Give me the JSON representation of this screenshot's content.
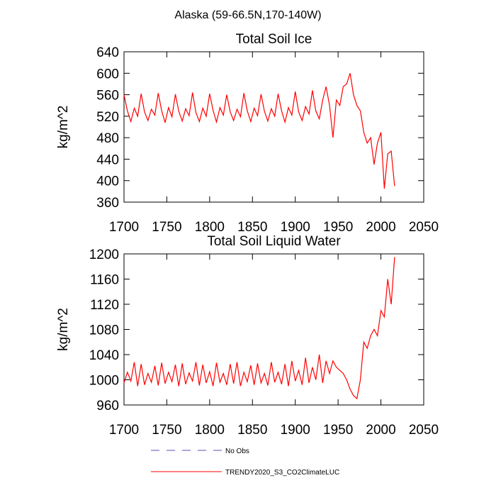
{
  "title": "Alaska (59-66.5N,170-140W)",
  "legend": [
    {
      "name": "No Obs",
      "color": "#5555bb",
      "dashed": true
    },
    {
      "name": "TRENDY2020_S3_CO2ClimateLUC",
      "color": "#ff0000",
      "dashed": false
    }
  ],
  "chart_data": [
    {
      "type": "line",
      "title": "Total Soil Ice",
      "ylabel": "kg/m^2",
      "xlim": [
        1700,
        2050
      ],
      "xticks": [
        1700,
        1750,
        1800,
        1850,
        1900,
        1950,
        2000,
        2050
      ],
      "ylim": [
        360,
        640
      ],
      "yticks": [
        360,
        400,
        440,
        480,
        520,
        560,
        600,
        640
      ],
      "x": [
        1700,
        1704,
        1708,
        1712,
        1716,
        1720,
        1724,
        1728,
        1732,
        1736,
        1740,
        1744,
        1748,
        1752,
        1756,
        1760,
        1764,
        1768,
        1772,
        1776,
        1780,
        1784,
        1788,
        1792,
        1796,
        1800,
        1804,
        1808,
        1812,
        1816,
        1820,
        1824,
        1828,
        1832,
        1836,
        1840,
        1844,
        1848,
        1852,
        1856,
        1860,
        1864,
        1868,
        1872,
        1876,
        1880,
        1884,
        1888,
        1892,
        1896,
        1900,
        1904,
        1908,
        1912,
        1916,
        1920,
        1924,
        1928,
        1932,
        1936,
        1940,
        1944,
        1948,
        1952,
        1956,
        1960,
        1964,
        1968,
        1972,
        1976,
        1980,
        1984,
        1988,
        1992,
        1996,
        2000,
        2004,
        2008,
        2012,
        2016
      ],
      "series": [
        {
          "color": "#ff0000",
          "values": [
            560,
            530,
            510,
            535,
            520,
            562,
            528,
            512,
            533,
            522,
            563,
            530,
            508,
            536,
            519,
            561,
            529,
            511,
            534,
            521,
            564,
            527,
            510,
            535,
            520,
            562,
            531,
            509,
            536,
            522,
            560,
            528,
            512,
            533,
            519,
            563,
            530,
            510,
            535,
            521,
            561,
            529,
            511,
            534,
            520,
            562,
            530,
            509,
            536,
            522,
            566,
            528,
            512,
            538,
            524,
            568,
            530,
            515,
            550,
            575,
            540,
            480,
            550,
            540,
            575,
            580,
            600,
            560,
            540,
            530,
            490,
            470,
            480,
            430,
            470,
            490,
            385,
            450,
            455,
            390
          ]
        }
      ]
    },
    {
      "type": "line",
      "title": "Total Soil Liquid Water",
      "ylabel": "kg/m^2",
      "xlim": [
        1700,
        2050
      ],
      "xticks": [
        1700,
        1750,
        1800,
        1850,
        1900,
        1950,
        2000,
        2050
      ],
      "ylim": [
        960,
        1200
      ],
      "yticks": [
        960,
        1000,
        1040,
        1080,
        1120,
        1160,
        1200
      ],
      "x": [
        1700,
        1704,
        1708,
        1712,
        1716,
        1720,
        1724,
        1728,
        1732,
        1736,
        1740,
        1744,
        1748,
        1752,
        1756,
        1760,
        1764,
        1768,
        1772,
        1776,
        1780,
        1784,
        1788,
        1792,
        1796,
        1800,
        1804,
        1808,
        1812,
        1816,
        1820,
        1824,
        1828,
        1832,
        1836,
        1840,
        1844,
        1848,
        1852,
        1856,
        1860,
        1864,
        1868,
        1872,
        1876,
        1880,
        1884,
        1888,
        1892,
        1896,
        1900,
        1904,
        1908,
        1912,
        1916,
        1920,
        1924,
        1928,
        1932,
        1936,
        1940,
        1944,
        1948,
        1952,
        1956,
        1960,
        1964,
        1968,
        1972,
        1976,
        1980,
        1984,
        1988,
        1992,
        1996,
        2000,
        2004,
        2008,
        2012,
        2016
      ],
      "series": [
        {
          "color": "#ff0000",
          "values": [
            995,
            1012,
            998,
            1028,
            990,
            1025,
            992,
            1010,
            996,
            1022,
            991,
            1027,
            994,
            1012,
            997,
            1024,
            990,
            1026,
            993,
            1011,
            998,
            1028,
            991,
            1024,
            995,
            1013,
            990,
            1027,
            996,
            1010,
            992,
            1025,
            994,
            1028,
            990,
            1012,
            997,
            1023,
            992,
            1026,
            995,
            1010,
            991,
            1028,
            996,
            1012,
            993,
            1025,
            990,
            1030,
            998,
            1015,
            992,
            1035,
            995,
            1020,
            1000,
            1040,
            995,
            1030,
            1010,
            1030,
            1020,
            1015,
            1010,
            1000,
            985,
            975,
            970,
            1000,
            1060,
            1050,
            1070,
            1080,
            1070,
            1110,
            1100,
            1160,
            1120,
            1195
          ]
        }
      ]
    }
  ]
}
